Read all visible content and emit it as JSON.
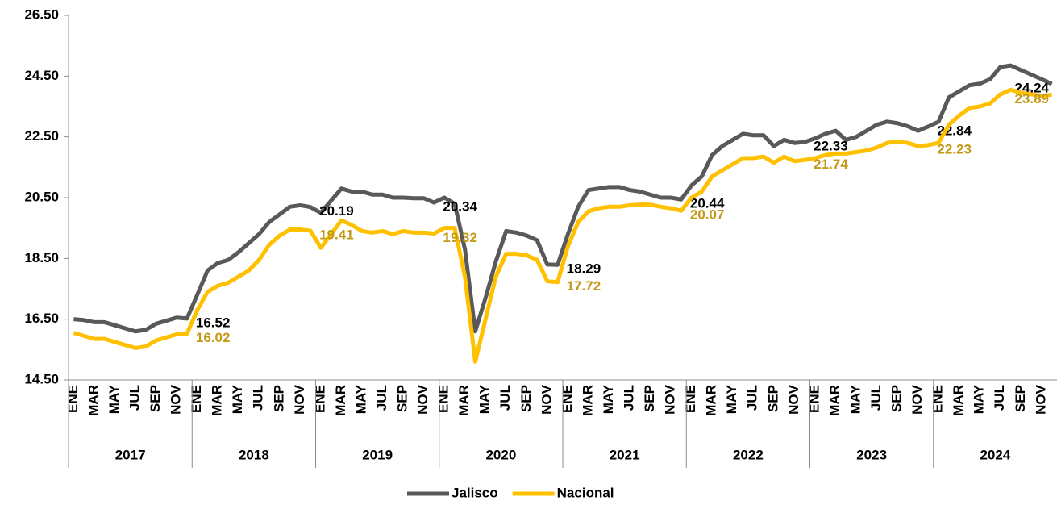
{
  "chart_data": {
    "type": "line",
    "categories": [
      "ENE",
      null,
      "MAR",
      null,
      "MAY",
      null,
      "JUL",
      null,
      "SEP",
      null,
      "NOV",
      null,
      "ENE",
      null,
      "MAR",
      null,
      "MAY",
      null,
      "JUL",
      null,
      "SEP",
      null,
      "NOV",
      null,
      "ENE",
      null,
      "MAR",
      null,
      "MAY",
      null,
      "JUL",
      null,
      "SEP",
      null,
      "NOV",
      null,
      "ENE",
      null,
      "MAR",
      null,
      "MAY",
      null,
      "JUL",
      null,
      "SEP",
      null,
      "NOV",
      null,
      "ENE",
      null,
      "MAR",
      null,
      "MAY",
      null,
      "JUL",
      null,
      "SEP",
      null,
      "NOV",
      null,
      "ENE",
      null,
      "MAR",
      null,
      "MAY",
      null,
      "JUL",
      null,
      "SEP",
      null,
      "NOV",
      null,
      "ENE",
      null,
      "MAR",
      null,
      "MAY",
      null,
      "JUL",
      null,
      "SEP",
      null,
      "NOV",
      null,
      "ENE",
      null,
      "MAR",
      null,
      "MAY",
      null,
      "JUL",
      null,
      "SEP",
      null,
      "NOV",
      null
    ],
    "years": [
      2017,
      2018,
      2019,
      2020,
      2021,
      2022,
      2023,
      2024
    ],
    "series": [
      {
        "name": "Jalisco",
        "color": "#595959",
        "label_color": "#000000",
        "values": [
          16.5,
          16.47,
          16.4,
          16.4,
          16.3,
          16.2,
          16.1,
          16.15,
          16.35,
          16.45,
          16.55,
          16.52,
          17.3,
          18.1,
          18.35,
          18.45,
          18.7,
          19.0,
          19.3,
          19.7,
          19.95,
          20.2,
          20.25,
          20.19,
          20.0,
          20.4,
          20.8,
          20.7,
          20.7,
          20.6,
          20.6,
          20.5,
          20.5,
          20.48,
          20.48,
          20.34,
          20.5,
          20.3,
          18.8,
          16.1,
          17.2,
          18.4,
          19.4,
          19.35,
          19.25,
          19.1,
          18.3,
          18.29,
          19.3,
          20.2,
          20.75,
          20.8,
          20.85,
          20.85,
          20.75,
          20.7,
          20.6,
          20.5,
          20.5,
          20.44,
          20.9,
          21.2,
          21.9,
          22.2,
          22.4,
          22.6,
          22.55,
          22.55,
          22.2,
          22.4,
          22.3,
          22.33,
          22.45,
          22.6,
          22.7,
          22.4,
          22.5,
          22.7,
          22.9,
          23.0,
          22.95,
          22.85,
          22.7,
          22.84,
          23.0,
          23.8,
          24.0,
          24.2,
          24.25,
          24.4,
          24.8,
          24.85,
          24.7,
          24.55,
          24.4,
          24.24
        ],
        "value_labels": [
          null,
          null,
          null,
          null,
          null,
          null,
          null,
          null,
          null,
          null,
          null,
          "16.52",
          null,
          null,
          null,
          null,
          null,
          null,
          null,
          null,
          null,
          null,
          null,
          "20.19",
          null,
          null,
          null,
          null,
          null,
          null,
          null,
          null,
          null,
          null,
          null,
          "20.34",
          null,
          null,
          null,
          null,
          null,
          null,
          null,
          null,
          null,
          null,
          null,
          "18.29",
          null,
          null,
          null,
          null,
          null,
          null,
          null,
          null,
          null,
          null,
          null,
          "20.44",
          null,
          null,
          null,
          null,
          null,
          null,
          null,
          null,
          null,
          null,
          null,
          "22.33",
          null,
          null,
          null,
          null,
          null,
          null,
          null,
          null,
          null,
          null,
          null,
          "22.84",
          null,
          null,
          null,
          null,
          null,
          null,
          null,
          null,
          null,
          null,
          null,
          "24.24"
        ]
      },
      {
        "name": "Nacional",
        "color": "#ffc000",
        "label_color": "#c39a16",
        "values": [
          16.05,
          15.95,
          15.85,
          15.85,
          15.75,
          15.65,
          15.55,
          15.6,
          15.8,
          15.9,
          16.0,
          16.02,
          16.8,
          17.4,
          17.6,
          17.7,
          17.9,
          18.1,
          18.45,
          18.95,
          19.25,
          19.45,
          19.45,
          19.41,
          18.85,
          19.3,
          19.75,
          19.6,
          19.4,
          19.35,
          19.4,
          19.3,
          19.4,
          19.35,
          19.35,
          19.32,
          19.5,
          19.5,
          17.9,
          15.1,
          16.5,
          17.9,
          18.65,
          18.65,
          18.6,
          18.45,
          17.75,
          17.72,
          18.9,
          19.7,
          20.05,
          20.15,
          20.2,
          20.2,
          20.25,
          20.27,
          20.27,
          20.2,
          20.15,
          20.07,
          20.5,
          20.7,
          21.2,
          21.4,
          21.6,
          21.8,
          21.8,
          21.85,
          21.65,
          21.85,
          21.7,
          21.74,
          21.8,
          21.9,
          21.95,
          21.95,
          22.0,
          22.05,
          22.15,
          22.3,
          22.35,
          22.3,
          22.2,
          22.23,
          22.3,
          22.9,
          23.2,
          23.45,
          23.5,
          23.6,
          23.9,
          24.05,
          23.95,
          23.9,
          23.85,
          23.89
        ],
        "value_labels": [
          null,
          null,
          null,
          null,
          null,
          null,
          null,
          null,
          null,
          null,
          null,
          "16.02",
          null,
          null,
          null,
          null,
          null,
          null,
          null,
          null,
          null,
          null,
          null,
          "19.41",
          null,
          null,
          null,
          null,
          null,
          null,
          null,
          null,
          null,
          null,
          null,
          "19.32",
          null,
          null,
          null,
          null,
          null,
          null,
          null,
          null,
          null,
          null,
          null,
          "17.72",
          null,
          null,
          null,
          null,
          null,
          null,
          null,
          null,
          null,
          null,
          null,
          "20.07",
          null,
          null,
          null,
          null,
          null,
          null,
          null,
          null,
          null,
          null,
          null,
          "21.74",
          null,
          null,
          null,
          null,
          null,
          null,
          null,
          null,
          null,
          null,
          null,
          "22.23",
          null,
          null,
          null,
          null,
          null,
          null,
          null,
          null,
          null,
          null,
          null,
          "23.89"
        ]
      }
    ],
    "ylim": [
      14.5,
      26.5
    ],
    "yticks": [
      {
        "value": 14.5,
        "label": "14.50"
      },
      {
        "value": 16.5,
        "label": "16.50"
      },
      {
        "value": 18.5,
        "label": "18.50"
      },
      {
        "value": 20.5,
        "label": "20.50"
      },
      {
        "value": 22.5,
        "label": "22.50"
      },
      {
        "value": 24.5,
        "label": "24.50"
      },
      {
        "value": 26.5,
        "label": "26.50"
      }
    ],
    "grid": false,
    "legend": "bottom"
  }
}
